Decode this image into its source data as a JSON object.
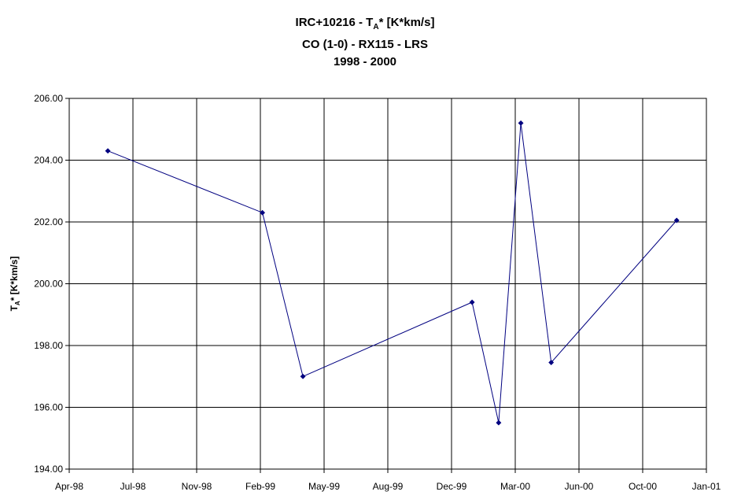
{
  "chart_data": {
    "type": "line",
    "title_line1_pre": "IRC+10216 - T",
    "title_line1_sub": "A",
    "title_line1_post": "* [K*km/s]",
    "title_line2": "CO (1-0) - RX115 - LRS",
    "title_line3": "1998 - 2000",
    "ylabel_pre": "T",
    "ylabel_sub": "A",
    "ylabel_post": "* [K*km/s]",
    "ylim": [
      194,
      206
    ],
    "y_ticks": [
      "194.00",
      "196.00",
      "198.00",
      "200.00",
      "202.00",
      "204.00",
      "206.00"
    ],
    "x_ticks": [
      "Apr-98",
      "Jul-98",
      "Nov-98",
      "Feb-99",
      "May-99",
      "Aug-99",
      "Dec-99",
      "Mar-00",
      "Jun-00",
      "Oct-00",
      "Jan-01"
    ],
    "xlim": [
      "1998-04-01",
      "2001-01-01"
    ],
    "grid": true,
    "series": [
      {
        "color": "#000080",
        "x": [
          "1998-06-01",
          "1999-01-31",
          "1999-04-05",
          "1999-12-28",
          "2000-02-08",
          "2000-03-14",
          "2000-05-01",
          "2000-11-15"
        ],
        "y": [
          204.3,
          202.3,
          197.0,
          199.4,
          195.5,
          205.2,
          197.45,
          202.05
        ]
      }
    ]
  }
}
